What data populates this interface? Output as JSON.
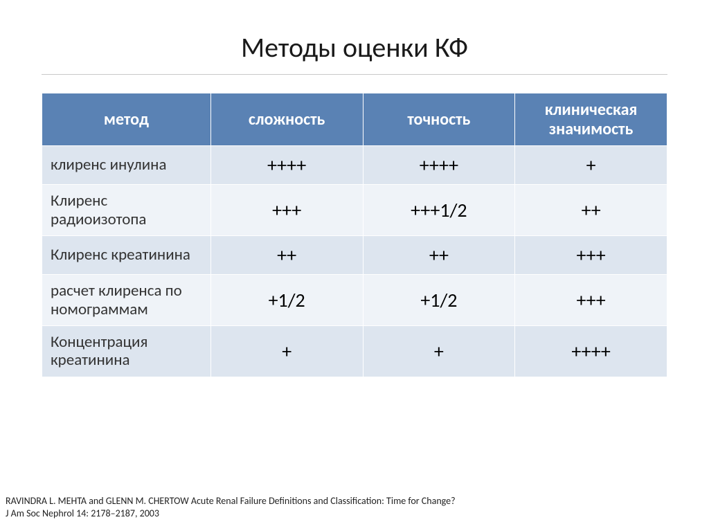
{
  "title": "Методы оценки КФ",
  "table": {
    "columns": [
      "метод",
      "сложность",
      "точность",
      "клиническая значимость"
    ],
    "rows": [
      {
        "label": "клиренс инулина",
        "values": [
          "++++",
          "++++",
          "+"
        ]
      },
      {
        "label": "Клиренс радиоизотопа",
        "values": [
          "+++",
          "+++1/2",
          "++"
        ]
      },
      {
        "label": "Клиренс креатинина",
        "values": [
          "++",
          "++",
          "+++"
        ]
      },
      {
        "label": "расчет клиренса по номограммам",
        "values": [
          "+1/2",
          "+1/2",
          "+++"
        ]
      },
      {
        "label": "Концентрация креатинина",
        "values": [
          "+",
          "+",
          "++++"
        ]
      }
    ],
    "header_bg": "#5a82b4",
    "header_fg": "#ffffff",
    "row_band_colors": [
      "#dde5ef",
      "#eff3f8"
    ],
    "border_color": "#ffffff",
    "header_fontsize": 24,
    "label_fontsize": 23,
    "value_fontsize": 28
  },
  "citation_line1": "RAVINDRA L. MEHTA and GLENN M. CHERTOW Acute Renal Failure Definitions and Classification: Time for Change?",
  "citation_line2": "J Am Soc Nephrol 14: 2178–2187, 2003",
  "colors": {
    "background": "#ffffff",
    "title": "#1a1a1a",
    "rule": "#c9c9c9"
  }
}
